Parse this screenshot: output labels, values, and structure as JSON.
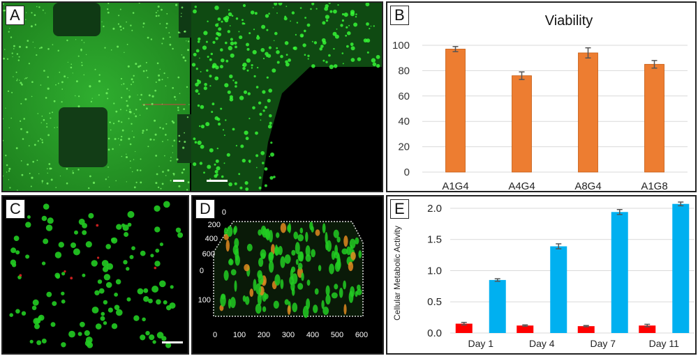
{
  "panels": {
    "a": {
      "label": "A"
    },
    "b": {
      "label": "B"
    },
    "c": {
      "label": "C"
    },
    "d": {
      "label": "D"
    },
    "e": {
      "label": "E"
    }
  },
  "colors": {
    "viability_bar": "#ED7D31",
    "day_red": "#FF0000",
    "day_blue": "#00B0F0",
    "live_cells": "#22CC22",
    "dead_cells": "#DD2222"
  },
  "panel_d": {
    "z_ticks_top": [
      "0",
      "200",
      "400",
      "600"
    ],
    "z_ticks_side": [
      "0",
      "100"
    ],
    "x_ticks": [
      "0",
      "100",
      "200",
      "300",
      "400",
      "500",
      "600"
    ]
  },
  "chart_data": [
    {
      "type": "bar",
      "title": "Viability",
      "categories": [
        "A1G4",
        "A4G4",
        "A8G4",
        "A1G8"
      ],
      "values": [
        97,
        76,
        94,
        85
      ],
      "errors": [
        2,
        3,
        4,
        3
      ],
      "ylim": [
        0,
        100
      ],
      "yticks": [
        "0",
        "20",
        "40",
        "60",
        "80",
        "100"
      ],
      "grid": true,
      "color": "#ED7D31"
    },
    {
      "type": "bar",
      "title": "",
      "ylabel": "Cellular Metabolic Activity",
      "categories": [
        "Day 1",
        "Day 4",
        "Day 7",
        "Day 11"
      ],
      "series": [
        {
          "values": [
            0.15,
            0.12,
            0.11,
            0.12
          ],
          "errors": [
            0.02,
            0.01,
            0.01,
            0.02
          ],
          "color": "#FF0000"
        },
        {
          "values": [
            0.85,
            1.39,
            1.94,
            2.07
          ],
          "errors": [
            0.02,
            0.04,
            0.04,
            0.03
          ],
          "color": "#00B0F0"
        }
      ],
      "ylim": [
        0,
        2.1
      ],
      "yticks": [
        "0.0",
        "0.5",
        "1.0",
        "1.5",
        "2.0"
      ],
      "grid": true
    }
  ]
}
